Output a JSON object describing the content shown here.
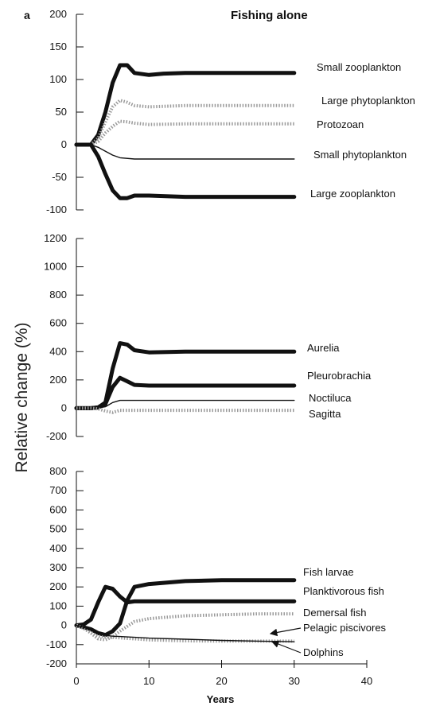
{
  "chart_data": {
    "panel_letter": "a",
    "title": "Fishing alone",
    "ylabel": "Relative change (%)",
    "xlabel": "Years",
    "x_ticks": [
      0,
      10,
      20,
      30,
      40
    ],
    "xlim": [
      0,
      40
    ],
    "panels": [
      {
        "id": "top",
        "type": "line",
        "ylim": [
          -100,
          200
        ],
        "y_ticks": [
          -100,
          -50,
          0,
          50,
          100,
          150,
          200
        ],
        "series": [
          {
            "name": "Small zooplankton",
            "style": "thick",
            "x": [
              0,
              2,
              3,
              4,
              5,
              6,
              7,
              8,
              10,
              12,
              15,
              20,
              25,
              30
            ],
            "y": [
              0,
              0,
              15,
              50,
              95,
              122,
              122,
              110,
              107,
              109,
              110,
              110,
              110,
              110
            ]
          },
          {
            "name": "Large phytoplankton",
            "style": "dotted",
            "x": [
              0,
              2,
              3,
              4,
              5,
              6,
              7,
              8,
              10,
              15,
              20,
              25,
              30
            ],
            "y": [
              0,
              0,
              10,
              35,
              58,
              68,
              65,
              60,
              58,
              60,
              60,
              60,
              60
            ]
          },
          {
            "name": "Protozoan",
            "style": "dotted",
            "x": [
              0,
              2,
              3,
              4,
              5,
              6,
              7,
              8,
              10,
              15,
              20,
              25,
              30
            ],
            "y": [
              0,
              0,
              5,
              18,
              28,
              36,
              35,
              33,
              31,
              32,
              32,
              32,
              32
            ]
          },
          {
            "name": "Small phytoplankton",
            "style": "thin",
            "x": [
              0,
              2,
              3,
              4,
              5,
              6,
              8,
              10,
              15,
              20,
              25,
              30
            ],
            "y": [
              0,
              0,
              -4,
              -10,
              -16,
              -20,
              -22,
              -22,
              -22,
              -22,
              -22,
              -22
            ]
          },
          {
            "name": "Large zooplankton",
            "style": "thick",
            "x": [
              0,
              2,
              3,
              4,
              5,
              6,
              7,
              8,
              10,
              15,
              20,
              25,
              30
            ],
            "y": [
              0,
              0,
              -18,
              -45,
              -70,
              -82,
              -82,
              -78,
              -78,
              -80,
              -80,
              -80,
              -80
            ]
          }
        ]
      },
      {
        "id": "middle",
        "type": "line",
        "ylim": [
          -200,
          1200
        ],
        "y_ticks": [
          -200,
          0,
          200,
          400,
          600,
          800,
          1000,
          1200
        ],
        "series": [
          {
            "name": "Aurelia",
            "style": "thick",
            "x": [
              0,
              2,
              3,
              4,
              5,
              6,
              7,
              8,
              10,
              15,
              20,
              25,
              30
            ],
            "y": [
              0,
              0,
              5,
              40,
              280,
              460,
              450,
              410,
              395,
              400,
              400,
              400,
              400
            ]
          },
          {
            "name": "Pleurobrachia",
            "style": "thick",
            "x": [
              0,
              2,
              3,
              4,
              5,
              6,
              7,
              8,
              10,
              15,
              20,
              25,
              30
            ],
            "y": [
              0,
              0,
              5,
              30,
              150,
              215,
              190,
              165,
              160,
              160,
              160,
              160,
              160
            ]
          },
          {
            "name": "Noctiluca",
            "style": "thin",
            "x": [
              0,
              2,
              3,
              4,
              5,
              6,
              8,
              10,
              15,
              20,
              25,
              30
            ],
            "y": [
              0,
              0,
              2,
              10,
              40,
              55,
              55,
              55,
              55,
              55,
              55,
              55
            ]
          },
          {
            "name": "Sagitta",
            "style": "dotted",
            "x": [
              0,
              2,
              3,
              4,
              5,
              6,
              8,
              10,
              15,
              20,
              25,
              30
            ],
            "y": [
              0,
              0,
              -5,
              -20,
              -30,
              -15,
              -15,
              -15,
              -15,
              -15,
              -15,
              -15
            ]
          }
        ]
      },
      {
        "id": "bottom",
        "type": "line",
        "ylim": [
          -200,
          800
        ],
        "y_ticks": [
          -200,
          -100,
          0,
          100,
          200,
          300,
          400,
          500,
          600,
          700,
          800
        ],
        "series": [
          {
            "name": "Fish larvae",
            "style": "thick",
            "x": [
              0,
              1,
              2,
              3,
              4,
              5,
              6,
              7,
              8,
              10,
              15,
              20,
              25,
              30
            ],
            "y": [
              0,
              -10,
              -20,
              -40,
              -50,
              -30,
              10,
              130,
              200,
              215,
              230,
              235,
              235,
              235
            ]
          },
          {
            "name": "Planktivorous fish",
            "style": "thick",
            "x": [
              0,
              1,
              2,
              3,
              4,
              5,
              6,
              7,
              8,
              10,
              15,
              20,
              25,
              30
            ],
            "y": [
              0,
              5,
              30,
              120,
              200,
              190,
              150,
              120,
              125,
              125,
              125,
              125,
              125,
              125
            ]
          },
          {
            "name": "Demersal fish",
            "style": "dotted",
            "x": [
              0,
              1,
              2,
              3,
              4,
              5,
              6,
              8,
              10,
              15,
              20,
              25,
              30
            ],
            "y": [
              0,
              -15,
              -40,
              -70,
              -75,
              -60,
              -30,
              20,
              35,
              50,
              55,
              60,
              60
            ]
          },
          {
            "name": "Pelagic piscivores",
            "style": "dotted",
            "x": [
              0,
              1,
              2,
              3,
              4,
              5,
              6,
              8,
              10,
              15,
              20,
              25,
              30
            ],
            "y": [
              0,
              -15,
              -35,
              -55,
              -60,
              -62,
              -65,
              -70,
              -75,
              -80,
              -82,
              -82,
              -82
            ]
          },
          {
            "name": "Dolphins",
            "style": "thin",
            "x": [
              0,
              1,
              2,
              3,
              4,
              5,
              6,
              8,
              10,
              15,
              20,
              25,
              30
            ],
            "y": [
              0,
              -10,
              -25,
              -45,
              -52,
              -56,
              -58,
              -62,
              -66,
              -72,
              -78,
              -82,
              -85
            ]
          }
        ]
      }
    ]
  }
}
